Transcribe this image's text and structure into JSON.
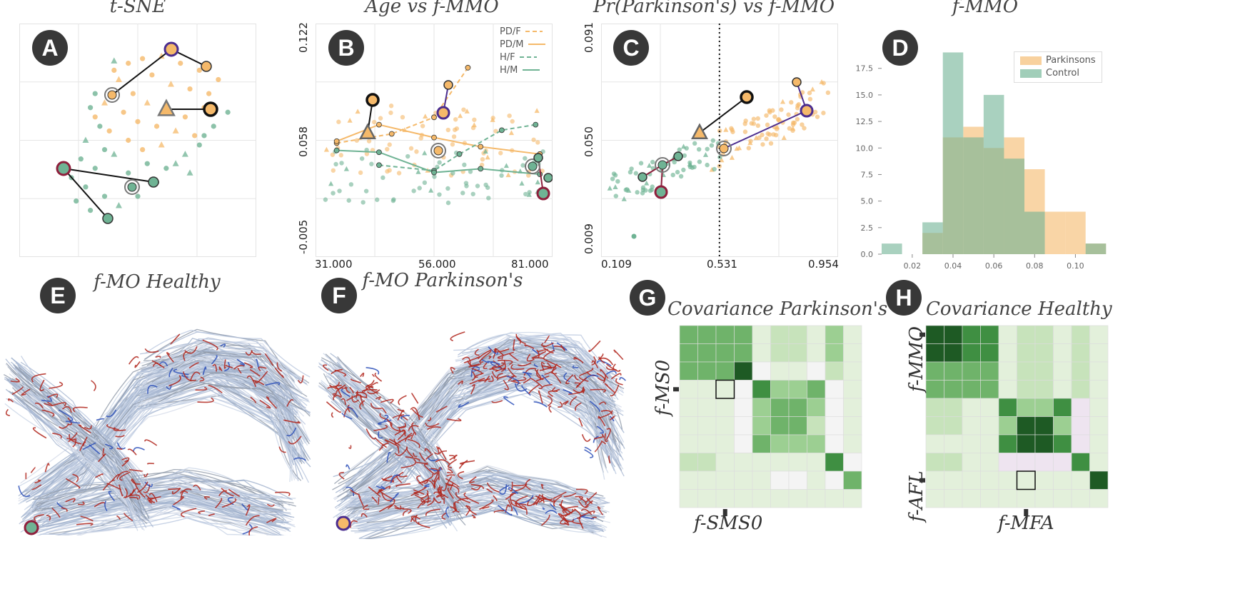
{
  "panels": {
    "A": {
      "badge": "A",
      "title": "t-SNE"
    },
    "B": {
      "badge": "B",
      "title": "Age vs f-MMO",
      "yticks": [
        "0.122",
        "0.058",
        "-0.005"
      ],
      "xticks": [
        "31.000",
        "56.000",
        "81.000"
      ],
      "legend": [
        "PD/F",
        "PD/M",
        "H/F",
        "H/M"
      ]
    },
    "C": {
      "badge": "C",
      "title": "Pr(Parkinson's) vs f-MMO",
      "yticks": [
        "0.091",
        "0.050",
        "0.009"
      ],
      "xticks": [
        "0.109",
        "0.531",
        "0.954"
      ]
    },
    "D": {
      "badge": "D",
      "title": "f-MMO",
      "yticks": [
        "17.5",
        "15.0",
        "12.5",
        "10.0",
        "7.5",
        "5.0",
        "2.5",
        "0.0"
      ],
      "xticks": [
        "0.02",
        "0.04",
        "0.06",
        "0.08",
        "0.10"
      ],
      "legend": [
        "Parkinsons",
        "Control"
      ]
    },
    "E": {
      "badge": "E",
      "title": "f-MO  Healthy"
    },
    "F": {
      "badge": "F",
      "title": "f-MO  Parkinson's"
    },
    "G": {
      "badge": "G",
      "title": "Covariance Parkinson's",
      "ylabel": "f-MS0",
      "xlabel": "f-SMS0"
    },
    "H": {
      "badge": "H",
      "title": "Covariance Healthy",
      "ylabel_top": "f-MMO",
      "ylabel_bottom": "f-AFL",
      "xlabel": "f-MFA"
    }
  },
  "colors": {
    "parkinsons": "#f5b96a",
    "control": "#6fb394",
    "highlight_purple": "#4b2d8f",
    "highlight_red": "#8e1f3c",
    "dark": "#222222"
  },
  "chart_data": [
    {
      "type": "scatter",
      "panel": "A",
      "title": "t-SNE",
      "series": [
        {
          "name": "Parkinsons",
          "points": [
            [
              4.2,
              7.6
            ],
            [
              4.0,
              8.0
            ],
            [
              4.6,
              8.3
            ],
            [
              5.2,
              8.5
            ],
            [
              6.0,
              8.6
            ],
            [
              6.8,
              8.3
            ],
            [
              7.6,
              8.0
            ],
            [
              5.6,
              7.8
            ],
            [
              6.4,
              7.4
            ],
            [
              7.2,
              7.2
            ],
            [
              8.0,
              7.0
            ],
            [
              4.8,
              7.0
            ],
            [
              5.4,
              6.6
            ],
            [
              6.2,
              6.2
            ],
            [
              7.0,
              6.0
            ],
            [
              7.8,
              6.4
            ],
            [
              3.6,
              6.6
            ],
            [
              4.4,
              6.2
            ],
            [
              5.0,
              5.8
            ],
            [
              5.8,
              5.6
            ],
            [
              6.6,
              5.4
            ],
            [
              8.4,
              7.6
            ],
            [
              3.8,
              5.4
            ],
            [
              4.6,
              5.0
            ],
            [
              6.0,
              4.8
            ],
            [
              7.4,
              5.2
            ],
            [
              3.2,
              6.0
            ],
            [
              5.2,
              4.6
            ]
          ]
        },
        {
          "name": "Control",
          "points": [
            [
              4.0,
              8.4
            ],
            [
              3.2,
              7.0
            ],
            [
              3.0,
              6.4
            ],
            [
              3.4,
              5.6
            ],
            [
              2.8,
              5.0
            ],
            [
              3.6,
              4.6
            ],
            [
              2.6,
              4.2
            ],
            [
              3.2,
              3.8
            ],
            [
              4.0,
              4.4
            ],
            [
              4.6,
              3.6
            ],
            [
              5.4,
              4.0
            ],
            [
              6.2,
              3.8
            ],
            [
              7.0,
              4.4
            ],
            [
              7.6,
              4.8
            ],
            [
              8.2,
              5.6
            ],
            [
              8.8,
              6.2
            ],
            [
              7.2,
              3.6
            ],
            [
              2.2,
              3.4
            ],
            [
              2.8,
              3.0
            ],
            [
              3.6,
              2.6
            ],
            [
              4.2,
              2.2
            ],
            [
              5.0,
              2.6
            ],
            [
              2.4,
              2.4
            ],
            [
              3.0,
              2.0
            ],
            [
              6.6,
              4.0
            ],
            [
              7.8,
              5.2
            ],
            [
              5.8,
              3.2
            ]
          ]
        }
      ]
    },
    {
      "type": "line",
      "panel": "B",
      "title": "Age vs f-MMO",
      "xlim": [
        28,
        84
      ],
      "ylim": [
        -0.005,
        0.122
      ],
      "series": [
        {
          "name": "PD/F",
          "x": [
            33,
            46,
            56,
            64
          ],
          "y": [
            0.057,
            0.062,
            0.071,
            0.098
          ]
        },
        {
          "name": "PD/M",
          "x": [
            33,
            43,
            56,
            67,
            81
          ],
          "y": [
            0.058,
            0.067,
            0.06,
            0.055,
            0.051
          ]
        },
        {
          "name": "H/F",
          "x": [
            43,
            56,
            62,
            72,
            80
          ],
          "y": [
            0.045,
            0.042,
            0.051,
            0.064,
            0.067
          ]
        },
        {
          "name": "H/M",
          "x": [
            33,
            43,
            56,
            67,
            81
          ],
          "y": [
            0.053,
            0.052,
            0.041,
            0.043,
            0.04
          ]
        }
      ]
    },
    {
      "type": "scatter",
      "panel": "C",
      "title": "Pr(Parkinson's) vs f-MMO",
      "xlim": [
        0.109,
        0.954
      ],
      "ylim": [
        0.009,
        0.091
      ],
      "threshold_x": 0.531
    },
    {
      "type": "bar",
      "panel": "D",
      "title": "f-MMO",
      "xlim": [
        0.005,
        0.11
      ],
      "ylim": [
        0,
        19.5
      ],
      "bin_edges": [
        0.005,
        0.015,
        0.025,
        0.035,
        0.045,
        0.055,
        0.065,
        0.075,
        0.085,
        0.095,
        0.105,
        0.115
      ],
      "series": [
        {
          "name": "Parkinsons",
          "values": [
            0,
            0,
            2,
            11,
            12,
            10,
            11,
            8,
            4,
            4,
            1
          ]
        },
        {
          "name": "Control",
          "values": [
            1,
            0,
            3,
            19,
            11,
            15,
            9,
            4,
            0,
            0,
            1
          ]
        }
      ]
    }
  ]
}
